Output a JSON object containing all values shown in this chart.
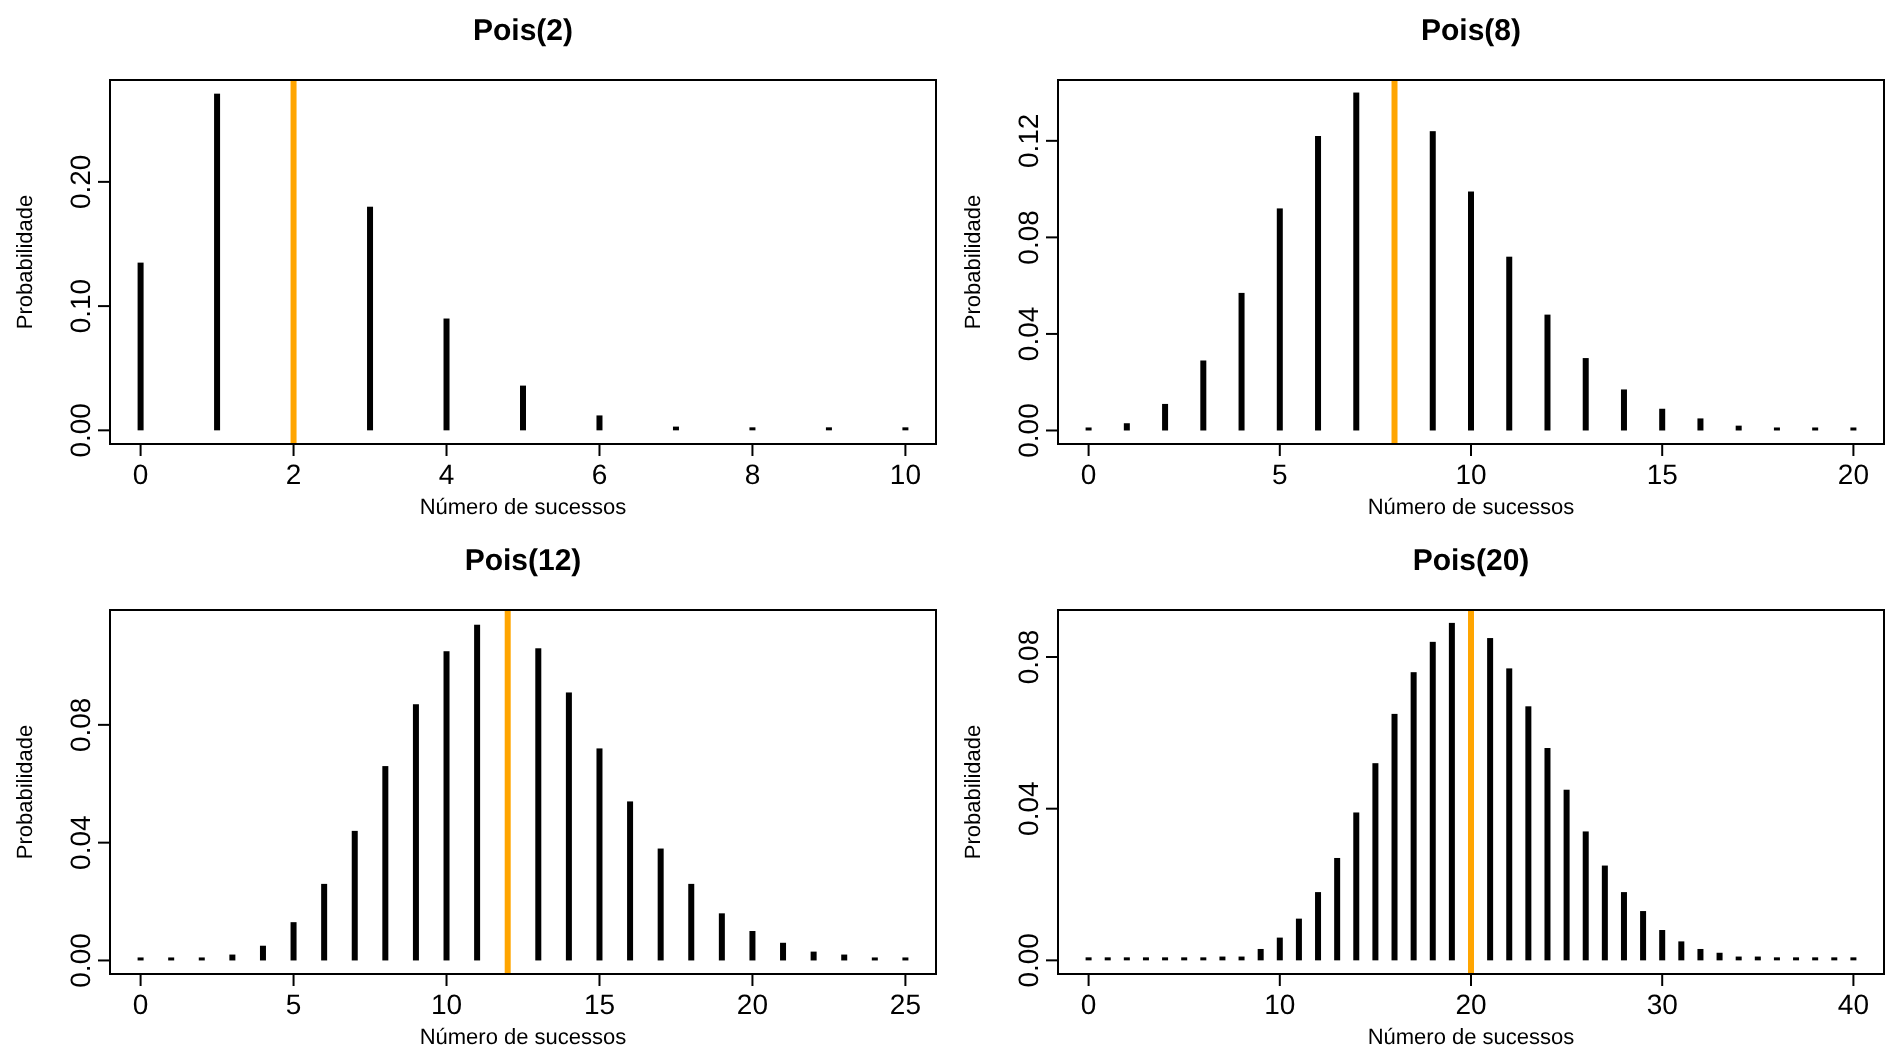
{
  "chart_data": [
    {
      "type": "bar",
      "title": "Pois(2)",
      "xlabel": "Número de sucessos",
      "ylabel": "Probabilidade",
      "color": "#000000",
      "x": [
        0,
        1,
        2,
        3,
        4,
        5,
        6,
        7,
        8,
        9,
        10
      ],
      "values": [
        0.135,
        0.271,
        null,
        0.18,
        0.09,
        0.036,
        0.012,
        0.003,
        0.001,
        0.0,
        0.0
      ],
      "xlim": [
        -0.4,
        10.4
      ],
      "ylim": [
        -0.011,
        0.282
      ],
      "xticks": [
        0,
        2,
        4,
        6,
        8,
        10
      ],
      "yticks": [
        {
          "value": 0,
          "label": "0.00"
        },
        {
          "value": 0.1,
          "label": "0.10"
        },
        {
          "value": 0.2,
          "label": "0.20"
        }
      ],
      "ref_lines": [
        {
          "axis": "x",
          "value": 2,
          "color": "#ffa500"
        }
      ]
    },
    {
      "type": "bar",
      "title": "Pois(8)",
      "xlabel": "Número de sucessos",
      "ylabel": "Probabilidade",
      "color": "#000000",
      "x": [
        0,
        1,
        2,
        3,
        4,
        5,
        6,
        7,
        8,
        9,
        10,
        11,
        12,
        13,
        14,
        15,
        16,
        17,
        18,
        19,
        20
      ],
      "values": [
        0.0,
        0.003,
        0.011,
        0.029,
        0.057,
        0.092,
        0.122,
        0.14,
        null,
        0.124,
        0.099,
        0.072,
        0.048,
        0.03,
        0.017,
        0.009,
        0.005,
        0.002,
        0.001,
        0.0,
        0.0
      ],
      "xlim": [
        -0.8,
        20.8
      ],
      "ylim": [
        -0.0056,
        0.1452
      ],
      "xticks": [
        0,
        5,
        10,
        15,
        20
      ],
      "yticks": [
        {
          "value": 0,
          "label": "0.00"
        },
        {
          "value": 0.04,
          "label": "0.04"
        },
        {
          "value": 0.08,
          "label": "0.08"
        },
        {
          "value": 0.12,
          "label": "0.12"
        }
      ],
      "ref_lines": [
        {
          "axis": "x",
          "value": 8,
          "color": "#ffa500"
        }
      ]
    },
    {
      "type": "bar",
      "title": "Pois(12)",
      "xlabel": "Número de sucessos",
      "ylabel": "Probabilidade",
      "color": "#000000",
      "x": [
        0,
        1,
        2,
        3,
        4,
        5,
        6,
        7,
        8,
        9,
        10,
        11,
        12,
        13,
        14,
        15,
        16,
        17,
        18,
        19,
        20,
        21,
        22,
        23,
        24,
        25
      ],
      "values": [
        0.0,
        0.0,
        0.0,
        0.002,
        0.005,
        0.013,
        0.026,
        0.044,
        0.066,
        0.087,
        0.105,
        0.114,
        null,
        0.106,
        0.091,
        0.072,
        0.054,
        0.038,
        0.026,
        0.016,
        0.01,
        0.006,
        0.003,
        0.002,
        0.001,
        0.0
      ],
      "xlim": [
        -1,
        26
      ],
      "ylim": [
        -0.0046,
        0.119
      ],
      "xticks": [
        0,
        5,
        10,
        15,
        20,
        25
      ],
      "yticks": [
        {
          "value": 0,
          "label": "0.00"
        },
        {
          "value": 0.04,
          "label": "0.04"
        },
        {
          "value": 0.08,
          "label": "0.08"
        }
      ],
      "ref_lines": [
        {
          "axis": "x",
          "value": 12,
          "color": "#ffa500"
        }
      ]
    },
    {
      "type": "bar",
      "title": "Pois(20)",
      "xlabel": "Número de sucessos",
      "ylabel": "Probabilidade",
      "color": "#000000",
      "x": [
        0,
        1,
        2,
        3,
        4,
        5,
        6,
        7,
        8,
        9,
        10,
        11,
        12,
        13,
        14,
        15,
        16,
        17,
        18,
        19,
        20,
        21,
        22,
        23,
        24,
        25,
        26,
        27,
        28,
        29,
        30,
        31,
        32,
        33,
        34,
        35,
        36,
        37,
        38,
        39,
        40
      ],
      "values": [
        0.0,
        0.0,
        0.0,
        0.0,
        0.0,
        0.0,
        0.0,
        0.001,
        0.001,
        0.003,
        0.006,
        0.011,
        0.018,
        0.027,
        0.039,
        0.052,
        0.065,
        0.076,
        0.084,
        0.089,
        null,
        0.085,
        0.077,
        0.067,
        0.056,
        0.045,
        0.034,
        0.025,
        0.018,
        0.013,
        0.008,
        0.005,
        0.003,
        0.002,
        0.001,
        0.001,
        0.0,
        0.0,
        0.0,
        0.0,
        0.0
      ],
      "xlim": [
        -1.6,
        41.6
      ],
      "ylim": [
        -0.0036,
        0.0924
      ],
      "xticks": [
        0,
        10,
        20,
        30,
        40
      ],
      "yticks": [
        {
          "value": 0,
          "label": "0.00"
        },
        {
          "value": 0.04,
          "label": "0.04"
        },
        {
          "value": 0.08,
          "label": "0.08"
        }
      ],
      "ref_lines": [
        {
          "axis": "x",
          "value": 20,
          "color": "#ffa500"
        }
      ]
    }
  ]
}
